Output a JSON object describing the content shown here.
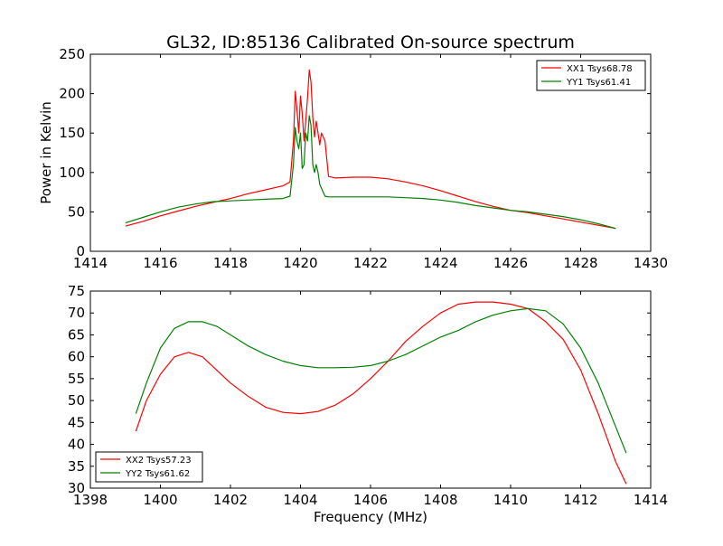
{
  "chart_data": [
    {
      "type": "line",
      "title": "GL32, ID:85136 Calibrated On-source spectrum",
      "xlabel": "",
      "ylabel": "Power in Kelvin",
      "xlim": [
        1414,
        1430
      ],
      "ylim": [
        0,
        250
      ],
      "xticks": [
        1414,
        1416,
        1418,
        1420,
        1422,
        1424,
        1426,
        1428,
        1430
      ],
      "yticks": [
        0,
        50,
        100,
        150,
        200,
        250
      ],
      "grid": false,
      "legend_position": "top-right",
      "series": [
        {
          "name": "XX1 Tsys68.78",
          "color": "#ff0000",
          "x": [
            1415.0,
            1415.5,
            1416.0,
            1416.5,
            1417.0,
            1417.5,
            1418.0,
            1418.5,
            1419.0,
            1419.5,
            1419.7,
            1419.8,
            1419.85,
            1419.9,
            1419.95,
            1420.0,
            1420.05,
            1420.1,
            1420.15,
            1420.2,
            1420.25,
            1420.3,
            1420.35,
            1420.4,
            1420.45,
            1420.5,
            1420.55,
            1420.6,
            1420.7,
            1420.8,
            1421.0,
            1421.5,
            1422.0,
            1422.5,
            1423.0,
            1423.5,
            1424.0,
            1424.5,
            1425.0,
            1425.5,
            1426.0,
            1426.5,
            1427.0,
            1427.5,
            1428.0,
            1428.5,
            1429.0
          ],
          "y": [
            32,
            38,
            45,
            51,
            57,
            62,
            67,
            73,
            78,
            83,
            88,
            140,
            203,
            180,
            150,
            197,
            175,
            140,
            165,
            195,
            230,
            215,
            170,
            145,
            165,
            150,
            135,
            150,
            140,
            95,
            93,
            94,
            94,
            92,
            88,
            83,
            77,
            70,
            63,
            57,
            52,
            49,
            45,
            41,
            37,
            33,
            29
          ]
        },
        {
          "name": "YY1 Tsys61.41",
          "color": "#008000",
          "x": [
            1415.0,
            1415.5,
            1416.0,
            1416.5,
            1417.0,
            1417.5,
            1418.0,
            1418.5,
            1419.0,
            1419.5,
            1419.7,
            1419.8,
            1419.85,
            1419.9,
            1419.95,
            1420.0,
            1420.05,
            1420.1,
            1420.15,
            1420.2,
            1420.25,
            1420.3,
            1420.35,
            1420.4,
            1420.45,
            1420.5,
            1420.55,
            1420.6,
            1420.7,
            1420.8,
            1421.0,
            1421.5,
            1422.0,
            1422.5,
            1423.0,
            1423.5,
            1424.0,
            1424.5,
            1425.0,
            1425.5,
            1426.0,
            1426.5,
            1427.0,
            1427.5,
            1428.0,
            1428.5,
            1429.0
          ],
          "y": [
            36,
            43,
            50,
            56,
            60,
            63,
            64,
            65,
            66,
            67,
            70,
            110,
            157,
            140,
            130,
            150,
            105,
            110,
            150,
            140,
            172,
            160,
            110,
            100,
            110,
            100,
            85,
            80,
            70,
            69,
            69,
            69,
            69,
            69,
            68,
            67,
            65,
            62,
            58,
            55,
            52,
            50,
            47,
            44,
            40,
            35,
            29
          ]
        }
      ]
    },
    {
      "type": "line",
      "title": "",
      "xlabel": "Frequency (MHz)",
      "ylabel": "",
      "xlim": [
        1398,
        1414
      ],
      "ylim": [
        30,
        75
      ],
      "xticks": [
        1398,
        1400,
        1402,
        1404,
        1406,
        1408,
        1410,
        1412,
        1414
      ],
      "yticks": [
        30,
        35,
        40,
        45,
        50,
        55,
        60,
        65,
        70,
        75
      ],
      "grid": false,
      "legend_position": "bottom-left",
      "series": [
        {
          "name": "XX2 Tsys57.23",
          "color": "#ff0000",
          "x": [
            1399.3,
            1399.6,
            1400.0,
            1400.4,
            1400.8,
            1401.2,
            1401.6,
            1402.0,
            1402.5,
            1403.0,
            1403.5,
            1404.0,
            1404.5,
            1405.0,
            1405.5,
            1406.0,
            1406.5,
            1407.0,
            1407.5,
            1408.0,
            1408.5,
            1409.0,
            1409.5,
            1410.0,
            1410.5,
            1411.0,
            1411.5,
            1412.0,
            1412.5,
            1413.0,
            1413.3
          ],
          "y": [
            43,
            50,
            56,
            60,
            61,
            60,
            57,
            54,
            51,
            48.5,
            47.3,
            47,
            47.5,
            49,
            51.5,
            55,
            59,
            63.5,
            67,
            70,
            72,
            72.5,
            72.5,
            72,
            71,
            68,
            64,
            57,
            47,
            36,
            31
          ]
        },
        {
          "name": "YY2 Tsys61.62",
          "color": "#008000",
          "x": [
            1399.3,
            1399.6,
            1400.0,
            1400.4,
            1400.8,
            1401.2,
            1401.6,
            1402.0,
            1402.5,
            1403.0,
            1403.5,
            1404.0,
            1404.5,
            1405.0,
            1405.5,
            1406.0,
            1406.5,
            1407.0,
            1407.5,
            1408.0,
            1408.5,
            1409.0,
            1409.5,
            1410.0,
            1410.5,
            1411.0,
            1411.5,
            1412.0,
            1412.5,
            1413.0,
            1413.3
          ],
          "y": [
            47,
            54,
            62,
            66.5,
            68,
            68,
            67,
            65,
            62.5,
            60.5,
            59,
            58,
            57.5,
            57.5,
            57.6,
            58,
            59,
            60.5,
            62.5,
            64.5,
            66,
            68,
            69.5,
            70.5,
            71,
            70.5,
            67.5,
            62,
            54,
            44,
            38
          ]
        }
      ]
    }
  ]
}
